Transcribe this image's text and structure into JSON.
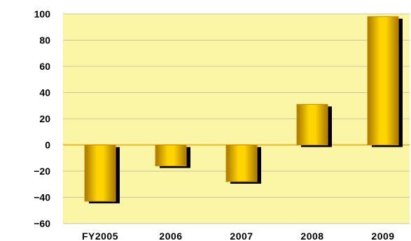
{
  "chart_data": {
    "type": "bar",
    "categories": [
      "FY2005",
      "2006",
      "2007",
      "2008",
      "2009"
    ],
    "values": [
      -43,
      -16,
      -28,
      31,
      98
    ],
    "ylim": [
      -60,
      100
    ],
    "yticks": [
      100,
      80,
      60,
      40,
      20,
      0,
      -20,
      -40,
      -60
    ],
    "ytick_labels": [
      "100",
      "80",
      "60",
      "40",
      "20",
      "0",
      "−20",
      "−40",
      "−60"
    ],
    "grid": true,
    "colors": {
      "plot_background": "#FBF6A6",
      "bar_dark": "#A87600",
      "bar_light": "#FFD400",
      "bar_edge": "#C98C00",
      "shadow": "#000000",
      "zero_line": "#F0A400",
      "grid": "#C9C49A"
    }
  }
}
